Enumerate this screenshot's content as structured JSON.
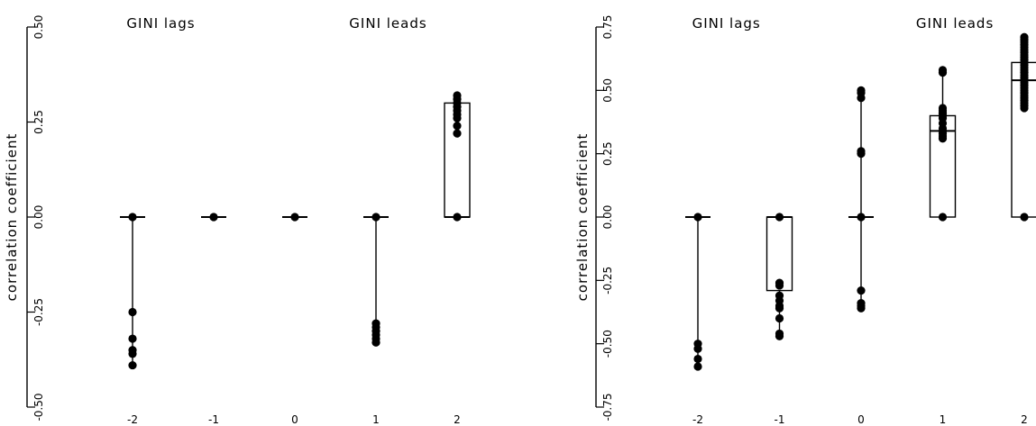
{
  "chart_data": [
    {
      "type": "boxplot",
      "title": "",
      "xlabel": "",
      "ylabel": "correlation coefficient",
      "ylim": [
        -0.5,
        0.5
      ],
      "yticks": [
        -0.5,
        -0.25,
        0.0,
        0.25,
        0.5
      ],
      "ytick_labels": [
        "-0.50",
        "-0.25",
        "0.00",
        "0.25",
        "0.50"
      ],
      "categories": [
        "-2",
        "-1",
        "0",
        "1",
        "2"
      ],
      "annotations": [
        "GINI lags",
        "GINI leads"
      ],
      "boxes": [
        {
          "x": -2,
          "q1": 0.0,
          "median": 0.0,
          "q3": 0.0,
          "whisker_low": -0.39,
          "whisker_high": 0.0
        },
        {
          "x": -1,
          "q1": 0.0,
          "median": 0.0,
          "q3": 0.0,
          "whisker_low": 0.0,
          "whisker_high": 0.0
        },
        {
          "x": 0,
          "q1": 0.0,
          "median": 0.0,
          "q3": 0.0,
          "whisker_low": 0.0,
          "whisker_high": 0.0
        },
        {
          "x": 1,
          "q1": 0.0,
          "median": 0.0,
          "q3": 0.0,
          "whisker_low": -0.33,
          "whisker_high": 0.0
        },
        {
          "x": 2,
          "q1": 0.0,
          "median": 0.0,
          "q3": 0.3,
          "whisker_low": 0.0,
          "whisker_high": 0.32
        }
      ],
      "points": [
        {
          "x": -2,
          "values": [
            0.0,
            -0.25,
            -0.32,
            -0.35,
            -0.36,
            -0.39
          ]
        },
        {
          "x": -1,
          "values": [
            0.0
          ]
        },
        {
          "x": 0,
          "values": [
            0.0
          ]
        },
        {
          "x": 1,
          "values": [
            0.0,
            -0.28,
            -0.29,
            -0.3,
            -0.31,
            -0.32,
            -0.33
          ]
        },
        {
          "x": 2,
          "values": [
            0.32,
            0.31,
            0.3,
            0.29,
            0.28,
            0.27,
            0.26,
            0.24,
            0.22,
            0.0
          ]
        }
      ]
    },
    {
      "type": "boxplot",
      "title": "",
      "xlabel": "",
      "ylabel": "correlation coefficient",
      "ylim": [
        -0.75,
        0.75
      ],
      "yticks": [
        -0.75,
        -0.5,
        -0.25,
        0.0,
        0.25,
        0.5,
        0.75
      ],
      "ytick_labels": [
        "-0.75",
        "-0.50",
        "-0.25",
        "0.00",
        "0.25",
        "0.50",
        "0.75"
      ],
      "categories": [
        "-2",
        "-1",
        "0",
        "1",
        "2"
      ],
      "annotations": [
        "GINI lags",
        "GINI leads"
      ],
      "boxes": [
        {
          "x": -2,
          "q1": 0.0,
          "median": 0.0,
          "q3": 0.0,
          "whisker_low": -0.59,
          "whisker_high": 0.0
        },
        {
          "x": -1,
          "q1": -0.29,
          "median": 0.0,
          "q3": 0.0,
          "whisker_low": -0.47,
          "whisker_high": 0.0
        },
        {
          "x": 0,
          "q1": 0.0,
          "median": 0.0,
          "q3": 0.0,
          "whisker_low": -0.36,
          "whisker_high": 0.5
        },
        {
          "x": 1,
          "q1": 0.0,
          "median": 0.34,
          "q3": 0.4,
          "whisker_low": 0.0,
          "whisker_high": 0.58
        },
        {
          "x": 2,
          "q1": 0.0,
          "median": 0.54,
          "q3": 0.61,
          "whisker_low": 0.0,
          "whisker_high": 0.71
        }
      ],
      "points": [
        {
          "x": -2,
          "values": [
            0.0,
            -0.5,
            -0.52,
            -0.56,
            -0.59
          ]
        },
        {
          "x": -1,
          "values": [
            0.0,
            -0.26,
            -0.27,
            -0.31,
            -0.33,
            -0.35,
            -0.36,
            -0.4,
            -0.46,
            -0.47
          ]
        },
        {
          "x": 0,
          "values": [
            0.5,
            0.49,
            0.47,
            0.26,
            0.25,
            0.0,
            -0.29,
            -0.34,
            -0.35,
            -0.36
          ]
        },
        {
          "x": 1,
          "values": [
            0.58,
            0.57,
            0.43,
            0.42,
            0.41,
            0.4,
            0.39,
            0.37,
            0.35,
            0.34,
            0.33,
            0.32,
            0.31,
            0.0
          ]
        },
        {
          "x": 2,
          "values": [
            0.71,
            0.7,
            0.69,
            0.68,
            0.67,
            0.66,
            0.65,
            0.64,
            0.63,
            0.62,
            0.61,
            0.6,
            0.59,
            0.58,
            0.57,
            0.56,
            0.55,
            0.54,
            0.53,
            0.52,
            0.51,
            0.5,
            0.49,
            0.48,
            0.47,
            0.46,
            0.45,
            0.44,
            0.43,
            0.0
          ]
        }
      ]
    }
  ]
}
